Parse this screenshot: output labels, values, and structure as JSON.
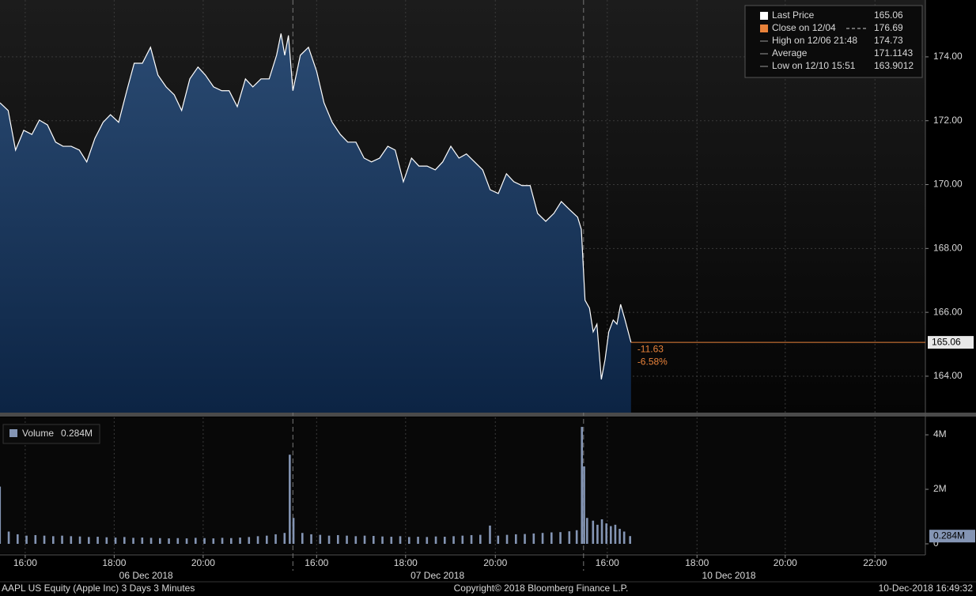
{
  "chart_data": [
    {
      "type": "area",
      "series_name": "Last Price",
      "color": "#ffffff",
      "x": [
        0,
        11,
        21,
        32,
        43,
        53,
        64,
        75,
        85,
        96,
        107,
        117,
        128,
        139,
        149,
        160,
        171,
        181,
        192,
        203,
        213,
        224,
        235,
        245,
        256,
        267,
        277,
        288,
        299,
        309,
        320,
        331,
        341,
        352,
        363,
        373,
        379,
        384,
        389,
        395,
        405,
        416,
        427,
        437,
        448,
        459,
        469,
        480,
        491,
        501,
        512,
        523,
        533,
        544,
        555,
        565,
        576,
        587,
        597,
        608,
        619,
        629,
        640,
        651,
        661,
        672,
        683,
        693,
        704,
        715,
        725,
        736,
        747,
        757,
        768,
        779,
        784,
        789,
        795,
        800,
        805,
        811,
        816,
        821,
        827,
        832,
        837,
        843,
        851
      ],
      "values": [
        172.56,
        172.32,
        171.08,
        171.7,
        171.57,
        172.02,
        171.87,
        171.33,
        171.2,
        171.2,
        171.08,
        170.71,
        171.45,
        171.95,
        172.19,
        171.95,
        172.94,
        173.8,
        173.8,
        174.3,
        173.43,
        173.06,
        172.81,
        172.32,
        173.31,
        173.68,
        173.43,
        173.06,
        172.94,
        172.94,
        172.44,
        173.31,
        173.06,
        173.31,
        173.31,
        174.05,
        174.73,
        174.05,
        174.67,
        172.94,
        174.05,
        174.3,
        173.55,
        172.56,
        171.95,
        171.57,
        171.33,
        171.33,
        170.83,
        170.71,
        170.83,
        171.2,
        171.08,
        170.09,
        170.83,
        170.58,
        170.58,
        170.46,
        170.71,
        171.2,
        170.83,
        170.96,
        170.71,
        170.46,
        169.84,
        169.72,
        170.34,
        170.09,
        169.97,
        169.97,
        169.1,
        168.85,
        169.1,
        169.47,
        169.22,
        168.98,
        168.6,
        166.38,
        166.13,
        165.39,
        165.63,
        163.9,
        164.52,
        165.39,
        165.76,
        165.63,
        166.25,
        165.76,
        165.06
      ],
      "xlim": [
        0,
        1248
      ],
      "xticks": [
        {
          "value": 34,
          "label": "16:00"
        },
        {
          "value": 154,
          "label": "18:00"
        },
        {
          "value": 274,
          "label": "20:00"
        },
        {
          "value": 427,
          "label": "16:00"
        },
        {
          "value": 547,
          "label": "18:00"
        },
        {
          "value": 668,
          "label": "20:00"
        },
        {
          "value": 819,
          "label": "16:00"
        },
        {
          "value": 940,
          "label": "18:00"
        },
        {
          "value": 1059,
          "label": "20:00"
        },
        {
          "value": 1180,
          "label": "22:00"
        }
      ],
      "date_labels": [
        {
          "value": 197,
          "label": "06 Dec 2018"
        },
        {
          "value": 590,
          "label": "07 Dec 2018"
        },
        {
          "value": 983,
          "label": "10 Dec 2018"
        }
      ],
      "session_breaks": [
        395,
        787
      ],
      "ylim": [
        162.86,
        175.78
      ],
      "yticks": [
        {
          "value": 164,
          "label": "164.00"
        },
        {
          "value": 166,
          "label": "166.00"
        },
        {
          "value": 168,
          "label": "168.00"
        },
        {
          "value": 170,
          "label": "170.00"
        },
        {
          "value": 172,
          "label": "172.00"
        },
        {
          "value": 174,
          "label": "174.00"
        }
      ],
      "grid": true,
      "last_price": 165.06,
      "close_label": "Close on 12/04",
      "close": 176.69,
      "high_label": "High on 12/06 21:48",
      "high": 174.73,
      "average_label": "Average",
      "average": 171.1143,
      "low_label": "Low on 12/10 15:51",
      "low": 163.9012,
      "change": -11.63,
      "change_pct": {
        "value": -6.58,
        "label": "-6.58%"
      },
      "last_color": "#e8823a"
    },
    {
      "type": "bar",
      "series_name": "Volume",
      "color": "#8495b4",
      "x": [
        0,
        12,
        24,
        36,
        48,
        60,
        72,
        84,
        96,
        108,
        120,
        132,
        144,
        156,
        168,
        180,
        192,
        204,
        216,
        228,
        240,
        252,
        264,
        276,
        288,
        300,
        312,
        324,
        336,
        348,
        360,
        372,
        384,
        391,
        396,
        408,
        420,
        432,
        444,
        456,
        468,
        480,
        492,
        504,
        516,
        528,
        540,
        552,
        564,
        576,
        588,
        600,
        612,
        624,
        636,
        648,
        661,
        672,
        684,
        696,
        708,
        720,
        732,
        744,
        756,
        768,
        778,
        785,
        788,
        792,
        800,
        806,
        812,
        818,
        824,
        830,
        836,
        842,
        850
      ],
      "values": [
        2100000,
        450000,
        350000,
        300000,
        320000,
        300000,
        280000,
        300000,
        280000,
        270000,
        250000,
        260000,
        240000,
        230000,
        250000,
        220000,
        230000,
        220000,
        210000,
        200000,
        210000,
        200000,
        220000,
        210000,
        200000,
        220000,
        210000,
        230000,
        250000,
        280000,
        300000,
        350000,
        400000,
        3270000,
        950000,
        400000,
        350000,
        330000,
        300000,
        320000,
        300000,
        280000,
        300000,
        290000,
        270000,
        260000,
        280000,
        250000,
        260000,
        250000,
        270000,
        260000,
        280000,
        300000,
        320000,
        330000,
        670000,
        300000,
        330000,
        350000,
        360000,
        380000,
        400000,
        420000,
        430000,
        460000,
        500000,
        4290000,
        2840000,
        950000,
        850000,
        700000,
        900000,
        750000,
        650000,
        700000,
        550000,
        450000,
        284000
      ],
      "ylim": [
        0,
        4640000
      ],
      "yticks": [
        {
          "value": 0,
          "label": "0"
        },
        {
          "value": 2000000,
          "label": "2M"
        },
        {
          "value": 4000000,
          "label": "4M"
        }
      ],
      "last_volume": {
        "value": 284000,
        "label": "0.284M"
      }
    }
  ],
  "footer": {
    "left": "AAPL US Equity (Apple Inc) 3 Days 3 Minutes",
    "center": "Copyright© 2018 Bloomberg Finance L.P.",
    "right": "10-Dec-2018 16:49:32"
  }
}
